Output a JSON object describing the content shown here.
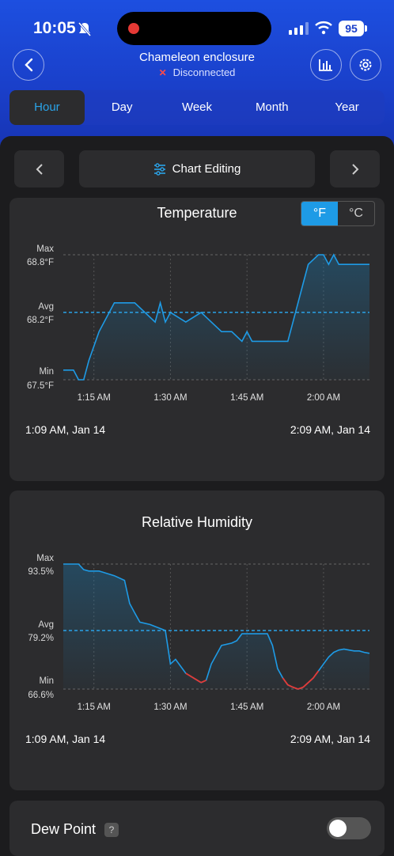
{
  "status_bar": {
    "time": "10:05",
    "battery": "95"
  },
  "header": {
    "title": "Chameleon enclosure",
    "subtitle": "Disconnected",
    "disconnected_icon": "x-icon",
    "accent_color": "#1e9be6"
  },
  "tabs": [
    {
      "label": "Hour",
      "active": true
    },
    {
      "label": "Day",
      "active": false
    },
    {
      "label": "Week",
      "active": false
    },
    {
      "label": "Month",
      "active": false
    },
    {
      "label": "Year",
      "active": false
    }
  ],
  "toolbar": {
    "editing_label": "Chart Editing"
  },
  "temperature": {
    "title": "Temperature",
    "units": [
      "°F",
      "°C"
    ],
    "selected_unit": "°F",
    "range_start": "1:09 AM,  Jan 14",
    "range_end": "2:09 AM,  Jan 14",
    "chart_data": {
      "type": "area",
      "title": "Temperature",
      "y_labels": {
        "max": "Max",
        "max_value": "68.8°F",
        "avg": "Avg",
        "avg_value": "68.2°F",
        "min": "Min",
        "min_value": "67.5°F"
      },
      "x_ticks": [
        "1:15 AM",
        "1:30 AM",
        "1:45 AM",
        "2:00 AM"
      ],
      "x": [
        9,
        11,
        12,
        13,
        14,
        16,
        19,
        23,
        27,
        28,
        29,
        30,
        33,
        36,
        38,
        40,
        42,
        44,
        45,
        46,
        47,
        48,
        53,
        54,
        55,
        56,
        57,
        59,
        60,
        61,
        62,
        63,
        64,
        65,
        66,
        67,
        68,
        69
      ],
      "values": [
        67.6,
        67.6,
        67.5,
        67.5,
        67.7,
        68.0,
        68.3,
        68.3,
        68.1,
        68.3,
        68.1,
        68.2,
        68.1,
        68.2,
        68.1,
        68.0,
        68.0,
        67.9,
        68.0,
        67.9,
        67.9,
        67.9,
        67.9,
        68.1,
        68.3,
        68.5,
        68.7,
        68.8,
        68.8,
        68.7,
        68.8,
        68.7,
        68.7,
        68.7,
        68.7,
        68.7,
        68.7,
        68.7
      ],
      "avg": 68.2,
      "ylim": [
        67.5,
        68.8
      ],
      "xlim": [
        9,
        69
      ],
      "line_color": "#1e9be6"
    }
  },
  "humidity": {
    "title": "Relative Humidity",
    "range_start": "1:09 AM,  Jan 14",
    "range_end": "2:09 AM,  Jan 14",
    "chart_data": {
      "type": "area",
      "title": "Relative Humidity",
      "y_labels": {
        "max": "Max",
        "max_value": "93.5%",
        "avg": "Avg",
        "avg_value": "79.2%",
        "min": "Min",
        "min_value": "66.6%"
      },
      "x_ticks": [
        "1:15 AM",
        "1:30 AM",
        "1:45 AM",
        "2:00 AM"
      ],
      "x": [
        9,
        12,
        13,
        14,
        16,
        19,
        21,
        22,
        23,
        24,
        26,
        29,
        30,
        31,
        33,
        36,
        37,
        38,
        40,
        42,
        43,
        44,
        46,
        49,
        50,
        51,
        52,
        53,
        54,
        55,
        56,
        57,
        58,
        59,
        60,
        61,
        62,
        63,
        64,
        65,
        66,
        67,
        68,
        69
      ],
      "values": [
        93.5,
        93.5,
        92.3,
        92.0,
        92.0,
        91.0,
        90.0,
        85.0,
        83.0,
        81.0,
        80.5,
        79.2,
        72.0,
        73.0,
        70.0,
        68.0,
        68.5,
        72.0,
        76.0,
        76.5,
        77.0,
        78.5,
        78.5,
        78.5,
        76.0,
        71.0,
        69.0,
        67.5,
        67.0,
        66.6,
        67.0,
        68.0,
        69.0,
        70.5,
        72.0,
        73.5,
        74.5,
        75.0,
        75.2,
        75.0,
        74.8,
        74.8,
        74.5,
        74.3
      ],
      "avg": 79.2,
      "ylim": [
        66.6,
        93.5
      ],
      "xlim": [
        9,
        69
      ],
      "line_color": "#1e9be6",
      "low_color": "#e53935"
    }
  },
  "dew_point": {
    "label": "Dew Point",
    "help": "?",
    "enabled": false
  }
}
